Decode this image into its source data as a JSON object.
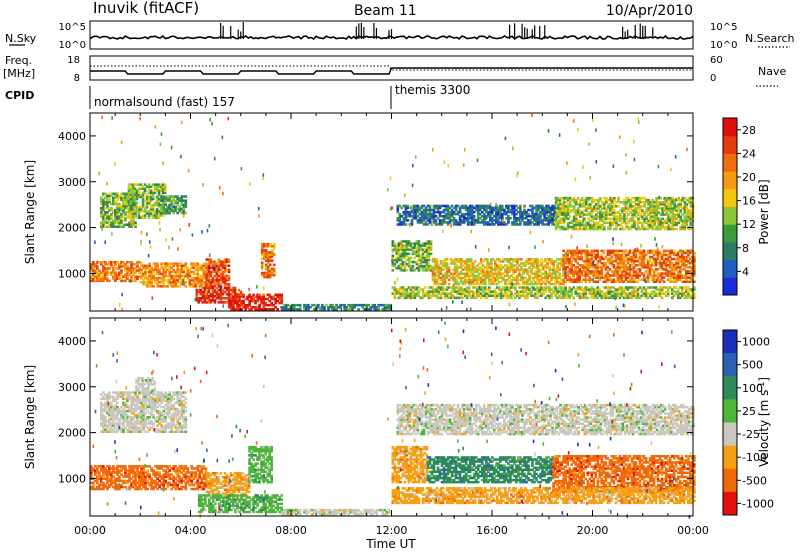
{
  "header": {
    "station": "Inuvik (fitACF)",
    "beam": "Beam 11",
    "date": "10/Apr/2010"
  },
  "top_panels": {
    "nsky_label": "N.Sky",
    "nsearch_label": "N.Search",
    "freq_label_line1": "Freq.",
    "freq_label_line2": "[MHz]",
    "nave_label": "Nave",
    "cpid_label": "CPID",
    "nsky_ticks": [
      "10^5",
      "10^0"
    ],
    "nsearch_ticks": [
      "10^5",
      "10^0"
    ],
    "freq_ticks": [
      "18",
      "8"
    ],
    "nave_ticks": [
      "60",
      "0"
    ],
    "cpid_segments": [
      {
        "start": "00:00",
        "end": "12:00",
        "label": "normalsound (fast) 157"
      },
      {
        "start": "12:00",
        "end": "00:00",
        "label": "themis 3300"
      }
    ]
  },
  "chart_data": [
    {
      "type": "heatmap",
      "title": "",
      "xlabel": "",
      "ylabel": "Slant Range [km]",
      "x_unit_hours": [
        0,
        24
      ],
      "xticks": [
        "00:00",
        "04:00",
        "08:00",
        "12:00",
        "16:00",
        "20:00",
        "00:00"
      ],
      "ylim": [
        180,
        4500
      ],
      "yticks": [
        1000,
        2000,
        3000,
        4000
      ],
      "colorbar": {
        "label": "Power [dB]",
        "ticks": [
          4,
          8,
          12,
          16,
          20,
          24,
          28
        ],
        "range": [
          0,
          30
        ],
        "colors": [
          "#1e2bd8",
          "#1f5fc0",
          "#2f7a62",
          "#3d9a3d",
          "#8cc63a",
          "#f2c80f",
          "#f59a12",
          "#f06a10",
          "#e63a0f",
          "#e10e0e"
        ]
      },
      "echo_regions": [
        {
          "t0": 0.0,
          "t1": 2.0,
          "r0": 820,
          "r1": 1250,
          "level": 22
        },
        {
          "t0": 2.0,
          "t1": 4.6,
          "r0": 700,
          "r1": 1200,
          "level": 20
        },
        {
          "t0": 4.6,
          "t1": 5.5,
          "r0": 700,
          "r1": 1300,
          "level": 24
        },
        {
          "t0": 4.2,
          "t1": 6.0,
          "r0": 350,
          "r1": 700,
          "level": 27
        },
        {
          "t0": 5.5,
          "t1": 7.6,
          "r0": 200,
          "r1": 550,
          "level": 28
        },
        {
          "t0": 6.8,
          "t1": 7.3,
          "r0": 900,
          "r1": 1650,
          "level": 22
        },
        {
          "t0": 0.4,
          "t1": 1.8,
          "r0": 2000,
          "r1": 2750,
          "level": 12
        },
        {
          "t0": 1.5,
          "t1": 3.0,
          "r0": 2200,
          "r1": 2950,
          "level": 13
        },
        {
          "t0": 2.8,
          "t1": 3.8,
          "r0": 2300,
          "r1": 2700,
          "level": 10
        },
        {
          "t0": 7.6,
          "t1": 12.0,
          "r0": 200,
          "r1": 330,
          "level": 8
        },
        {
          "t0": 12.0,
          "t1": 13.6,
          "r0": 1050,
          "r1": 1700,
          "level": 12
        },
        {
          "t0": 13.6,
          "t1": 18.8,
          "r0": 750,
          "r1": 1300,
          "level": 17
        },
        {
          "t0": 18.8,
          "t1": 24.0,
          "r0": 800,
          "r1": 1500,
          "level": 22
        },
        {
          "t0": 12.2,
          "t1": 18.5,
          "r0": 2050,
          "r1": 2500,
          "level": 6
        },
        {
          "t0": 18.5,
          "t1": 24.0,
          "r0": 1950,
          "r1": 2650,
          "level": 14
        },
        {
          "t0": 12.0,
          "t1": 24.0,
          "r0": 450,
          "r1": 720,
          "level": 14
        }
      ]
    },
    {
      "type": "heatmap",
      "title": "",
      "xlabel": "Time UT",
      "ylabel": "Slant Range [km]",
      "x_unit_hours": [
        0,
        24
      ],
      "xticks": [
        "00:00",
        "04:00",
        "08:00",
        "12:00",
        "16:00",
        "20:00",
        "00:00"
      ],
      "ylim": [
        180,
        4500
      ],
      "yticks": [
        1000,
        2000,
        3000,
        4000
      ],
      "colorbar": {
        "label": "Velocity [m s^-1]",
        "tick_labels": [
          "1000",
          "500",
          "100",
          "25",
          "-25",
          "-100",
          "-500",
          "-1000"
        ],
        "colors": [
          "#1a2fb8",
          "#2c60b0",
          "#2e8a5a",
          "#4fb43a",
          "#c8c8c0",
          "#f5a010",
          "#f06a0c",
          "#e31010"
        ]
      },
      "echo_regions": [
        {
          "t0": 0.0,
          "t1": 4.6,
          "r0": 750,
          "r1": 1250,
          "color": 6
        },
        {
          "t0": 4.6,
          "t1": 6.3,
          "r0": 600,
          "r1": 1100,
          "color": 5
        },
        {
          "t0": 4.3,
          "t1": 7.6,
          "r0": 250,
          "r1": 650,
          "color": 3
        },
        {
          "t0": 6.3,
          "t1": 7.2,
          "r0": 900,
          "r1": 1700,
          "color": 3
        },
        {
          "t0": 0.4,
          "t1": 3.8,
          "r0": 2000,
          "r1": 2900,
          "color": 4
        },
        {
          "t0": 1.8,
          "t1": 2.6,
          "r0": 2900,
          "r1": 3200,
          "color": 4
        },
        {
          "t0": 7.6,
          "t1": 11.9,
          "r0": 200,
          "r1": 300,
          "color": 4
        },
        {
          "t0": 12.0,
          "t1": 13.4,
          "r0": 900,
          "r1": 1700,
          "color": 5
        },
        {
          "t0": 13.4,
          "t1": 18.4,
          "r0": 900,
          "r1": 1450,
          "color": 2
        },
        {
          "t0": 18.4,
          "t1": 24.0,
          "r0": 700,
          "r1": 1500,
          "color": 6
        },
        {
          "t0": 12.2,
          "t1": 24.0,
          "r0": 1950,
          "r1": 2600,
          "color": 4
        },
        {
          "t0": 12.0,
          "t1": 24.0,
          "r0": 450,
          "r1": 800,
          "color": 5
        }
      ]
    }
  ]
}
